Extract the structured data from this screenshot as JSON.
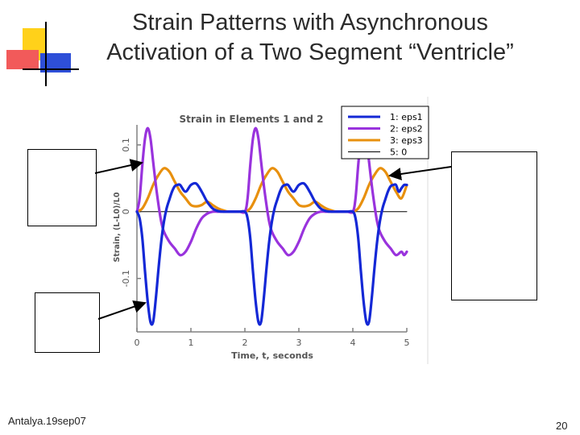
{
  "slide": {
    "title_line1": "Strain Patterns with Asynchronous",
    "title_line2": "Activation of a Two Segment “Ventricle”",
    "footer_left": "Antalya.19sep07",
    "page_number": "20"
  },
  "colors": {
    "deco_yellow": "#ffd11a",
    "deco_red": "#f25a5a",
    "deco_blue": "#2e4fd8",
    "eps1": "#1428d6",
    "eps2": "#9933dd",
    "eps3": "#e8900e",
    "zero": "#000000",
    "axis": "#808080"
  },
  "chart_data": {
    "type": "line",
    "title": "Strain in Elements 1 and 2",
    "xlabel": "Time, t, seconds",
    "ylabel": "Strain, (L-L0)/L0",
    "xlim": [
      0,
      5
    ],
    "ylim": [
      -0.18,
      0.13
    ],
    "xticks": [
      "0",
      "1",
      "2",
      "3",
      "4",
      "5"
    ],
    "yticks": [
      {
        "value": 0.1,
        "label": "0.1"
      },
      {
        "value": 0,
        "label": "0"
      },
      {
        "value": -0.1,
        "label": "-0.1"
      }
    ],
    "legend_position": "top-right",
    "series": [
      {
        "key": "eps1",
        "name": "1: eps1",
        "x": [
          0,
          0.05,
          0.1,
          0.15,
          0.2,
          0.25,
          0.3,
          0.35,
          0.4,
          0.45,
          0.5,
          0.55,
          0.6,
          0.65,
          0.7,
          0.75,
          0.8,
          0.9,
          1.0,
          1.1,
          1.2,
          1.3,
          1.4,
          1.5,
          1.6,
          1.7,
          1.8,
          1.9,
          2.0,
          2.05,
          2.1,
          2.15,
          2.2,
          2.25,
          2.3,
          2.35,
          2.4,
          2.45,
          2.5,
          2.55,
          2.6,
          2.65,
          2.7,
          2.75,
          2.8,
          2.9,
          3.0,
          3.1,
          3.2,
          3.3,
          3.4,
          3.5,
          3.6,
          3.7,
          3.8,
          3.9,
          4.0,
          4.05,
          4.1,
          4.15,
          4.2,
          4.25,
          4.3,
          4.35,
          4.4,
          4.45,
          4.5,
          4.55,
          4.6,
          4.65,
          4.7,
          4.75,
          4.8,
          4.85,
          4.9,
          4.95,
          5.0
        ],
        "y": [
          0,
          -0.01,
          -0.04,
          -0.09,
          -0.135,
          -0.165,
          -0.165,
          -0.13,
          -0.085,
          -0.045,
          -0.015,
          0.005,
          0.018,
          0.03,
          0.038,
          0.04,
          0.04,
          0.03,
          0.04,
          0.042,
          0.03,
          0.015,
          0.005,
          0.001,
          0,
          0,
          0,
          0,
          0,
          -0.01,
          -0.04,
          -0.09,
          -0.135,
          -0.165,
          -0.165,
          -0.13,
          -0.085,
          -0.045,
          -0.015,
          0.005,
          0.018,
          0.03,
          0.038,
          0.04,
          0.04,
          0.03,
          0.04,
          0.042,
          0.03,
          0.015,
          0.005,
          0.001,
          0,
          0,
          0,
          0,
          0,
          -0.01,
          -0.04,
          -0.09,
          -0.135,
          -0.165,
          -0.165,
          -0.13,
          -0.085,
          -0.045,
          -0.015,
          0.005,
          0.018,
          0.03,
          0.038,
          0.04,
          0.04,
          0.03,
          0.035,
          0.04,
          0.04
        ]
      },
      {
        "key": "eps2",
        "name": "2: eps2",
        "x": [
          0,
          0.05,
          0.1,
          0.15,
          0.2,
          0.25,
          0.3,
          0.35,
          0.4,
          0.45,
          0.5,
          0.6,
          0.7,
          0.8,
          0.9,
          1.0,
          1.1,
          1.2,
          1.3,
          1.4,
          1.5,
          1.6,
          1.7,
          1.8,
          1.9,
          2.0,
          2.05,
          2.1,
          2.15,
          2.2,
          2.25,
          2.3,
          2.35,
          2.4,
          2.45,
          2.5,
          2.6,
          2.7,
          2.8,
          2.9,
          3.0,
          3.1,
          3.2,
          3.3,
          3.4,
          3.5,
          3.6,
          3.7,
          3.8,
          3.9,
          4.0,
          4.05,
          4.1,
          4.15,
          4.2,
          4.25,
          4.3,
          4.35,
          4.4,
          4.45,
          4.5,
          4.6,
          4.7,
          4.8,
          4.9,
          4.95,
          5.0
        ],
        "y": [
          0,
          0.02,
          0.07,
          0.11,
          0.125,
          0.11,
          0.075,
          0.04,
          0.01,
          -0.015,
          -0.03,
          -0.045,
          -0.055,
          -0.065,
          -0.06,
          -0.045,
          -0.025,
          -0.01,
          -0.003,
          0,
          0,
          0,
          0,
          0,
          0,
          0,
          0.02,
          0.07,
          0.11,
          0.125,
          0.11,
          0.075,
          0.04,
          0.01,
          -0.015,
          -0.03,
          -0.045,
          -0.055,
          -0.065,
          -0.06,
          -0.045,
          -0.025,
          -0.01,
          -0.003,
          0,
          0,
          0,
          0,
          0,
          0,
          0,
          0.02,
          0.07,
          0.11,
          0.125,
          0.11,
          0.075,
          0.04,
          0.01,
          -0.015,
          -0.03,
          -0.045,
          -0.055,
          -0.065,
          -0.06,
          -0.065,
          -0.06
        ]
      },
      {
        "key": "eps3",
        "name": "3: eps3",
        "x": [
          0,
          0.1,
          0.2,
          0.3,
          0.4,
          0.5,
          0.6,
          0.7,
          0.8,
          0.9,
          1.0,
          1.1,
          1.2,
          1.3,
          1.4,
          1.5,
          1.6,
          1.7,
          1.8,
          1.9,
          2.0,
          2.1,
          2.2,
          2.3,
          2.4,
          2.5,
          2.6,
          2.7,
          2.8,
          2.9,
          3.0,
          3.1,
          3.2,
          3.3,
          3.4,
          3.5,
          3.6,
          3.7,
          3.8,
          3.9,
          4.0,
          4.1,
          4.2,
          4.3,
          4.4,
          4.5,
          4.6,
          4.7,
          4.8,
          4.9,
          5.0
        ],
        "y": [
          0,
          0.005,
          0.02,
          0.04,
          0.055,
          0.065,
          0.06,
          0.045,
          0.03,
          0.02,
          0.01,
          0.008,
          0.01,
          0.015,
          0.01,
          0.005,
          0.002,
          0,
          0,
          0,
          0,
          0.005,
          0.02,
          0.04,
          0.055,
          0.065,
          0.06,
          0.045,
          0.03,
          0.02,
          0.01,
          0.008,
          0.01,
          0.015,
          0.01,
          0.005,
          0.002,
          0,
          0,
          0,
          0,
          0.005,
          0.02,
          0.04,
          0.055,
          0.065,
          0.06,
          0.045,
          0.03,
          0.02,
          0.04
        ]
      },
      {
        "key": "zero",
        "name": "5: 0",
        "x": [
          0,
          5
        ],
        "y": [
          0,
          0
        ]
      }
    ]
  }
}
